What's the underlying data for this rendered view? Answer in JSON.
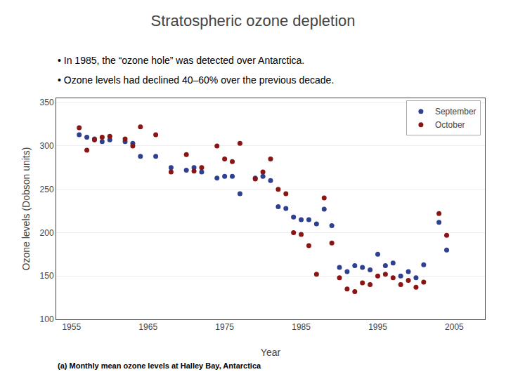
{
  "chart_data": {
    "type": "scatter",
    "title": "Stratospheric ozone depletion",
    "xlabel": "Year",
    "ylabel": "Ozone levels (Dobson units)",
    "annotations": [
      "• In 1985, the “ozone hole” was detected over Antarctica.",
      "• Ozone levels had declined 40–60% over the previous decade.",
      "(a) Monthly mean ozone levels at Halley Bay, Antarctica"
    ],
    "xlim": [
      1953,
      2009
    ],
    "ylim": [
      100,
      355
    ],
    "xticks": [
      1955,
      1965,
      1975,
      1985,
      1995,
      2005
    ],
    "yticks": [
      100,
      150,
      200,
      250,
      300,
      350
    ],
    "grid": "y",
    "legend": "upper right",
    "series": [
      {
        "name": "September",
        "color": "#2e4090",
        "marker": "circle",
        "x": [
          1956,
          1957,
          1958,
          1959,
          1960,
          1962,
          1963,
          1964,
          1966,
          1968,
          1970,
          1971,
          1972,
          1974,
          1975,
          1976,
          1977,
          1979,
          1980,
          1981,
          1982,
          1983,
          1984,
          1985,
          1986,
          1987,
          1988,
          1989,
          1990,
          1991,
          1992,
          1993,
          1994,
          1995,
          1996,
          1997,
          1998,
          1999,
          2000,
          2001,
          2003,
          2004
        ],
        "values": [
          313,
          310,
          308,
          305,
          307,
          305,
          303,
          288,
          288,
          275,
          272,
          275,
          270,
          263,
          265,
          265,
          245,
          263,
          265,
          260,
          230,
          228,
          218,
          215,
          215,
          210,
          227,
          208,
          160,
          155,
          162,
          160,
          157,
          175,
          162,
          165,
          150,
          155,
          148,
          163,
          212,
          180
        ]
      },
      {
        "name": "October",
        "color": "#8b1515",
        "marker": "circle",
        "x": [
          1956,
          1957,
          1958,
          1959,
          1960,
          1962,
          1963,
          1964,
          1966,
          1968,
          1970,
          1971,
          1972,
          1974,
          1975,
          1976,
          1977,
          1979,
          1980,
          1981,
          1982,
          1983,
          1984,
          1985,
          1986,
          1987,
          1988,
          1989,
          1990,
          1991,
          1992,
          1993,
          1994,
          1995,
          1996,
          1997,
          1998,
          1999,
          2000,
          2001,
          2003,
          2004
        ],
        "values": [
          321,
          295,
          307,
          310,
          311,
          308,
          300,
          322,
          313,
          270,
          290,
          271,
          275,
          300,
          285,
          282,
          303,
          262,
          270,
          285,
          250,
          245,
          200,
          198,
          185,
          152,
          240,
          188,
          148,
          135,
          132,
          142,
          140,
          150,
          152,
          148,
          140,
          145,
          137,
          143,
          222,
          197
        ]
      }
    ]
  }
}
